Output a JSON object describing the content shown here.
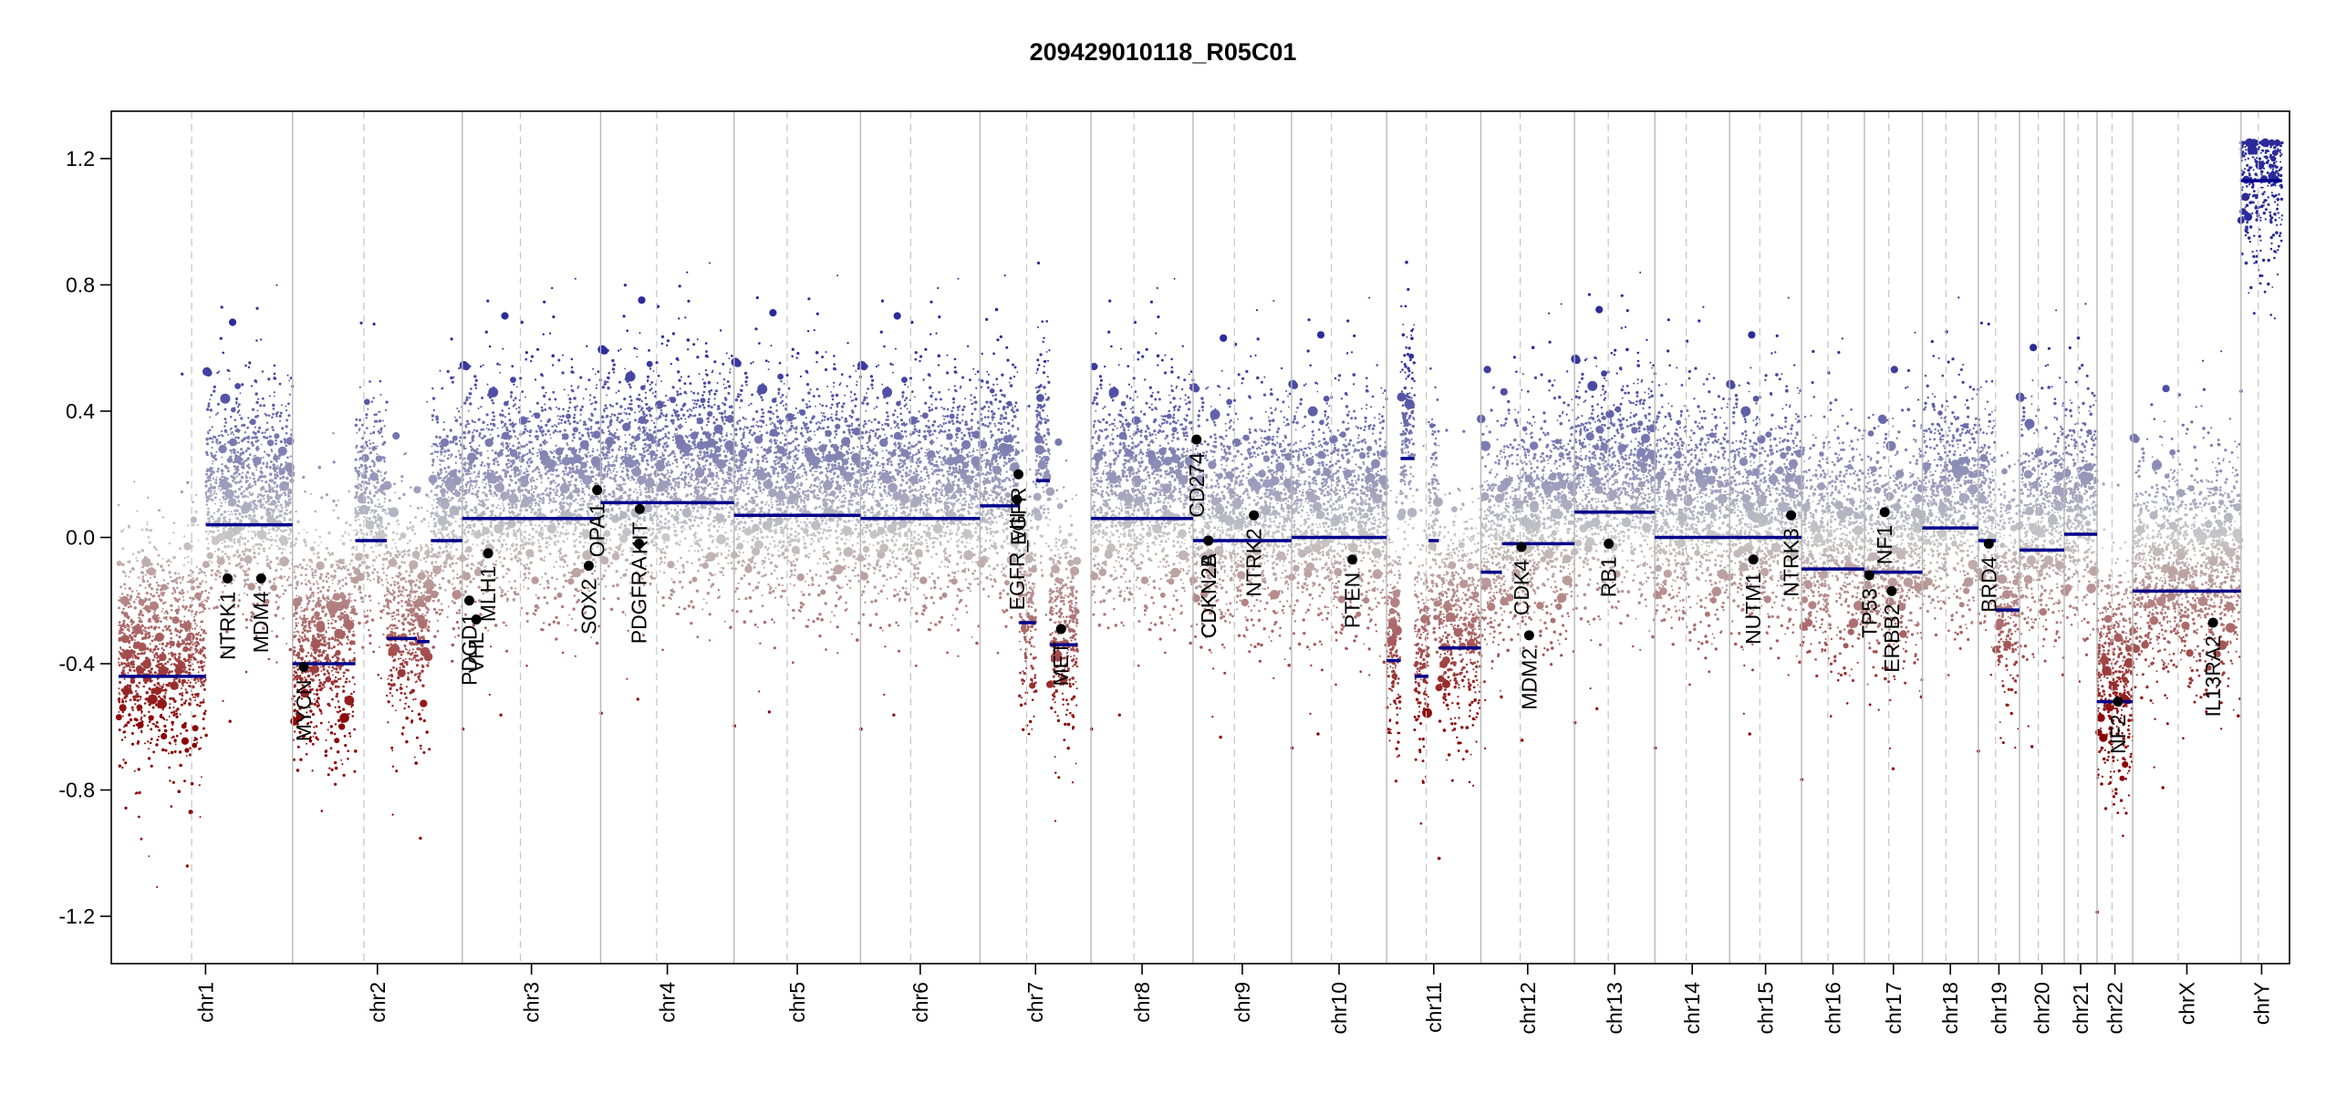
{
  "title": "209429010118_R05C01",
  "chart_data": {
    "type": "scatter",
    "title": "209429010118_R05C01",
    "xlabel": "",
    "ylabel": "",
    "ylim": [
      -1.35,
      1.35
    ],
    "y_ticks": [
      "-1.2",
      "-0.8",
      "-0.4",
      "0.0",
      "0.4",
      "0.8",
      "1.2"
    ],
    "y_tick_values": [
      -1.2,
      -0.8,
      -0.4,
      0.0,
      0.4,
      0.8,
      1.2
    ],
    "colors": {
      "gain": "#2b2b9a",
      "loss": "#8b0000",
      "neutral": "#c8c8c8",
      "segment": "#00008b",
      "gene": "#000000"
    },
    "chromosomes": [
      {
        "name": "chr1",
        "length": 249
      },
      {
        "name": "chr2",
        "length": 243
      },
      {
        "name": "chr3",
        "length": 198
      },
      {
        "name": "chr4",
        "length": 191
      },
      {
        "name": "chr5",
        "length": 181
      },
      {
        "name": "chr6",
        "length": 171
      },
      {
        "name": "chr7",
        "length": 159
      },
      {
        "name": "chr8",
        "length": 146
      },
      {
        "name": "chr9",
        "length": 141
      },
      {
        "name": "chr10",
        "length": 136
      },
      {
        "name": "chr11",
        "length": 135
      },
      {
        "name": "chr12",
        "length": 134
      },
      {
        "name": "chr13",
        "length": 115
      },
      {
        "name": "chr14",
        "length": 107
      },
      {
        "name": "chr15",
        "length": 103
      },
      {
        "name": "chr16",
        "length": 90
      },
      {
        "name": "chr17",
        "length": 83
      },
      {
        "name": "chr18",
        "length": 80
      },
      {
        "name": "chr19",
        "length": 59
      },
      {
        "name": "chr20",
        "length": 64
      },
      {
        "name": "chr21",
        "length": 47
      },
      {
        "name": "chr22",
        "length": 51
      },
      {
        "name": "chrX",
        "length": 155
      },
      {
        "name": "chrY",
        "length": 59
      }
    ],
    "segments": [
      {
        "chr": "chr1",
        "start": 0,
        "end": 125,
        "value": -0.44
      },
      {
        "chr": "chr1",
        "start": 125,
        "end": 249,
        "value": 0.04
      },
      {
        "chr": "chr2",
        "start": 0,
        "end": 90,
        "value": -0.4
      },
      {
        "chr": "chr2",
        "start": 90,
        "end": 135,
        "value": -0.01
      },
      {
        "chr": "chr2",
        "start": 135,
        "end": 178,
        "value": -0.32
      },
      {
        "chr": "chr2",
        "start": 178,
        "end": 196,
        "value": -0.33
      },
      {
        "chr": "chr2",
        "start": 198,
        "end": 243,
        "value": -0.01
      },
      {
        "chr": "chr3",
        "start": 0,
        "end": 198,
        "value": 0.06
      },
      {
        "chr": "chr4",
        "start": 0,
        "end": 191,
        "value": 0.11
      },
      {
        "chr": "chr5",
        "start": 0,
        "end": 181,
        "value": 0.07
      },
      {
        "chr": "chr6",
        "start": 0,
        "end": 171,
        "value": 0.06
      },
      {
        "chr": "chr7",
        "start": 0,
        "end": 55,
        "value": 0.1
      },
      {
        "chr": "chr7",
        "start": 56,
        "end": 80,
        "value": -0.27
      },
      {
        "chr": "chr7",
        "start": 80,
        "end": 100,
        "value": 0.18
      },
      {
        "chr": "chr7",
        "start": 100,
        "end": 140,
        "value": -0.34
      },
      {
        "chr": "chr8",
        "start": 0,
        "end": 146,
        "value": 0.06
      },
      {
        "chr": "chr9",
        "start": 0,
        "end": 141,
        "value": -0.01
      },
      {
        "chr": "chr10",
        "start": 0,
        "end": 136,
        "value": 0.0
      },
      {
        "chr": "chr11",
        "start": 0,
        "end": 20,
        "value": -0.39
      },
      {
        "chr": "chr11",
        "start": 20,
        "end": 40,
        "value": 0.25
      },
      {
        "chr": "chr11",
        "start": 40,
        "end": 60,
        "value": -0.44
      },
      {
        "chr": "chr11",
        "start": 60,
        "end": 75,
        "value": -0.01
      },
      {
        "chr": "chr11",
        "start": 75,
        "end": 135,
        "value": -0.35
      },
      {
        "chr": "chr12",
        "start": 0,
        "end": 30,
        "value": -0.11
      },
      {
        "chr": "chr12",
        "start": 30,
        "end": 134,
        "value": -0.02
      },
      {
        "chr": "chr13",
        "start": 0,
        "end": 115,
        "value": 0.08
      },
      {
        "chr": "chr14",
        "start": 0,
        "end": 107,
        "value": 0.0
      },
      {
        "chr": "chr15",
        "start": 0,
        "end": 103,
        "value": 0.0
      },
      {
        "chr": "chr16",
        "start": 0,
        "end": 90,
        "value": -0.1
      },
      {
        "chr": "chr17",
        "start": 0,
        "end": 25,
        "value": -0.11
      },
      {
        "chr": "chr17",
        "start": 25,
        "end": 83,
        "value": -0.11
      },
      {
        "chr": "chr18",
        "start": 0,
        "end": 80,
        "value": 0.03
      },
      {
        "chr": "chr19",
        "start": 0,
        "end": 25,
        "value": -0.01
      },
      {
        "chr": "chr19",
        "start": 25,
        "end": 59,
        "value": -0.23
      },
      {
        "chr": "chr20",
        "start": 0,
        "end": 64,
        "value": -0.04
      },
      {
        "chr": "chr21",
        "start": 0,
        "end": 47,
        "value": 0.01
      },
      {
        "chr": "chr22",
        "start": 0,
        "end": 51,
        "value": -0.52
      },
      {
        "chr": "chrX",
        "start": 0,
        "end": 155,
        "value": -0.17
      },
      {
        "chr": "chrY",
        "start": 0,
        "end": 59,
        "value": 1.13
      }
    ],
    "genes": [
      {
        "name": "NTRK1",
        "chr": "chr1",
        "pos": 156,
        "value": -0.13
      },
      {
        "name": "MDM4",
        "chr": "chr1",
        "pos": 204,
        "value": -0.13
      },
      {
        "name": "MYCN",
        "chr": "chr2",
        "pos": 16,
        "value": -0.41
      },
      {
        "name": "PDGD1",
        "chr": "chr3",
        "pos": 10,
        "value": -0.2
      },
      {
        "name": "VHL",
        "chr": "chr3",
        "pos": 20,
        "value": -0.26
      },
      {
        "name": "MLH1",
        "chr": "chr3",
        "pos": 37,
        "value": -0.05
      },
      {
        "name": "SOX2",
        "chr": "chr3",
        "pos": 181,
        "value": -0.09
      },
      {
        "name": "OPA1",
        "chr": "chr3",
        "pos": 193,
        "value": 0.15
      },
      {
        "name": "PDGFRA",
        "chr": "chr4",
        "pos": 55,
        "value": -0.02
      },
      {
        "name": "KIT",
        "chr": "chr4",
        "pos": 56,
        "value": 0.09
      },
      {
        "name": "EGFR",
        "chr": "chr7",
        "pos": 55,
        "value": 0.2
      },
      {
        "name": "EGFR_vIII",
        "chr": "chr7",
        "pos": 53,
        "value": 0.12
      },
      {
        "name": "MET",
        "chr": "chr7",
        "pos": 116,
        "value": -0.29
      },
      {
        "name": "CD274",
        "chr": "chr9",
        "pos": 5,
        "value": 0.31
      },
      {
        "name": "CDKN2A",
        "chr": "chr9",
        "pos": 22,
        "value": -0.01
      },
      {
        "name": "CDKN2B",
        "chr": "chr9",
        "pos": 22,
        "value": -0.01
      },
      {
        "name": "NTRK2",
        "chr": "chr9",
        "pos": 87,
        "value": 0.07
      },
      {
        "name": "PTEN",
        "chr": "chr10",
        "pos": 87,
        "value": -0.07
      },
      {
        "name": "CDK4",
        "chr": "chr12",
        "pos": 58,
        "value": -0.03
      },
      {
        "name": "MDM2",
        "chr": "chr12",
        "pos": 69,
        "value": -0.31
      },
      {
        "name": "RB1",
        "chr": "chr13",
        "pos": 49,
        "value": -0.02
      },
      {
        "name": "NUTM1",
        "chr": "chr15",
        "pos": 34,
        "value": -0.07
      },
      {
        "name": "NTRK3",
        "chr": "chr15",
        "pos": 88,
        "value": 0.07
      },
      {
        "name": "TP53",
        "chr": "chr17",
        "pos": 7,
        "value": -0.12
      },
      {
        "name": "NF1",
        "chr": "chr17",
        "pos": 29,
        "value": 0.08
      },
      {
        "name": "ERBB2",
        "chr": "chr17",
        "pos": 39,
        "value": -0.17
      },
      {
        "name": "BRD4",
        "chr": "chr19",
        "pos": 15,
        "value": -0.02
      },
      {
        "name": "NF2",
        "chr": "chr22",
        "pos": 30,
        "value": -0.52
      },
      {
        "name": "IL13RA2",
        "chr": "chrX",
        "pos": 115,
        "value": -0.27
      }
    ],
    "grid": false,
    "legend": "none"
  }
}
